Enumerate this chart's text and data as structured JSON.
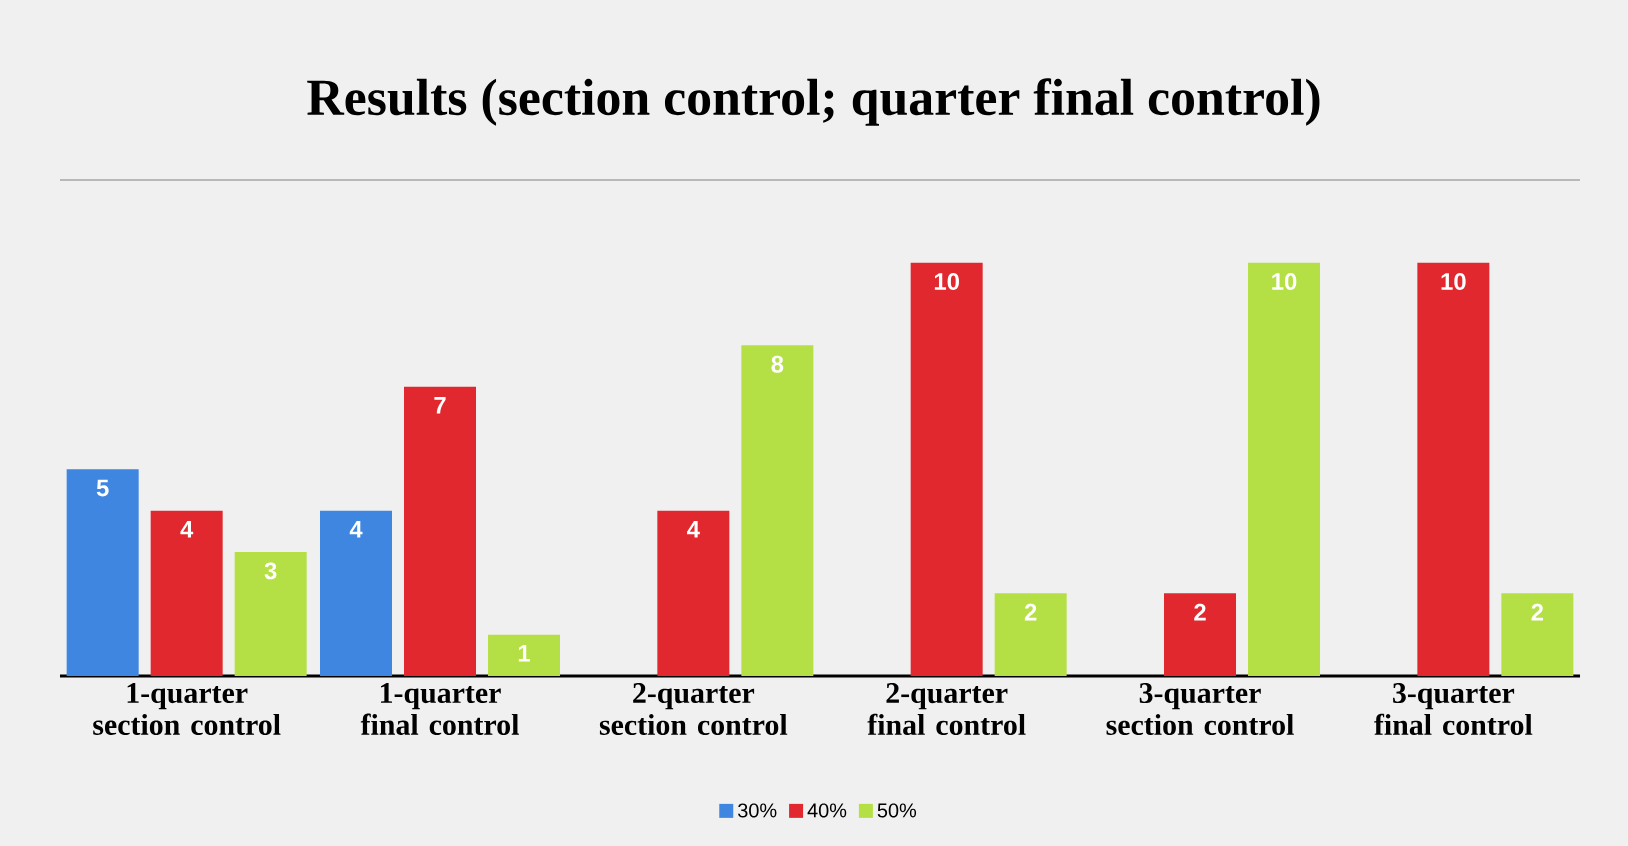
{
  "chart_data": {
    "type": "bar",
    "title": "Results (section control; quarter final control)",
    "categories": [
      "1-quarter section control",
      "1-quarter final control",
      "2-quarter section control",
      "2-quarter final control",
      "3-quarter section control",
      "3-quarter final control"
    ],
    "series": [
      {
        "name": "30%",
        "color": "#3f86e0",
        "values": [
          5,
          4,
          null,
          null,
          null,
          null
        ]
      },
      {
        "name": "40%",
        "color": "#e0282e",
        "values": [
          4,
          7,
          4,
          10,
          2,
          10
        ]
      },
      {
        "name": "50%",
        "color": "#b5e045",
        "values": [
          3,
          1,
          8,
          2,
          10,
          2
        ]
      }
    ],
    "ylim": [
      0,
      12
    ],
    "tick_labels": "x",
    "legend": "bottom",
    "data_labels": true
  }
}
